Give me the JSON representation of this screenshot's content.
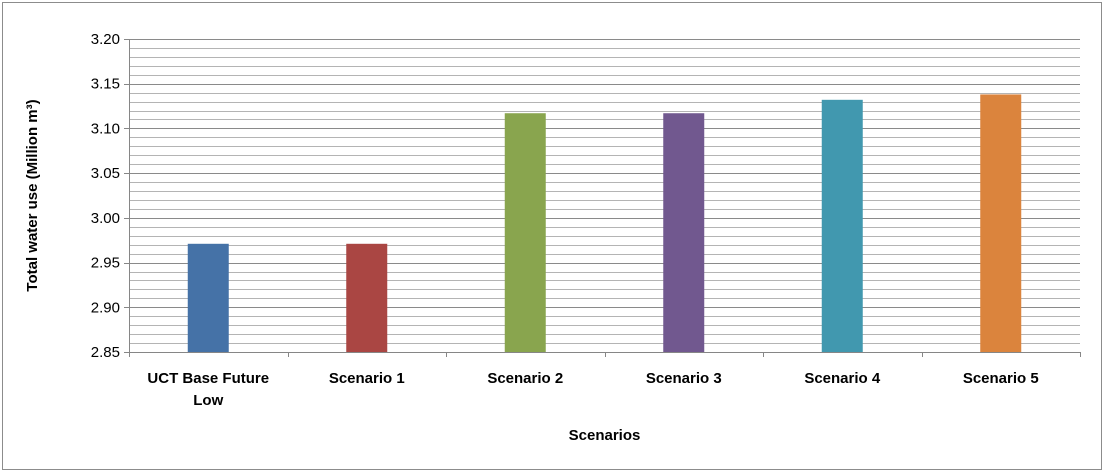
{
  "chart_data": {
    "type": "bar",
    "title": "",
    "xlabel": "Scenarios",
    "ylabel": "Total water use (Million m³)",
    "categories": [
      [
        "UCT Base Future",
        "Low"
      ],
      [
        "Scenario 1"
      ],
      [
        "Scenario  2"
      ],
      [
        "Scenario  3"
      ],
      [
        "Scenario  4"
      ],
      [
        "Scenario  5"
      ]
    ],
    "values": [
      2.971,
      2.971,
      3.117,
      3.117,
      3.132,
      3.138
    ],
    "colors": [
      "#4572a7",
      "#aa4643",
      "#89a54e",
      "#71588f",
      "#4198af",
      "#db843d"
    ],
    "ylim": [
      2.85,
      3.2
    ],
    "major_step": 0.05,
    "minor_step": 0.01,
    "ytick_labels": [
      "2.85",
      "2.90",
      "2.95",
      "3.00",
      "3.05",
      "3.10",
      "3.15",
      "3.20"
    ],
    "grid": true,
    "legend": "none"
  }
}
